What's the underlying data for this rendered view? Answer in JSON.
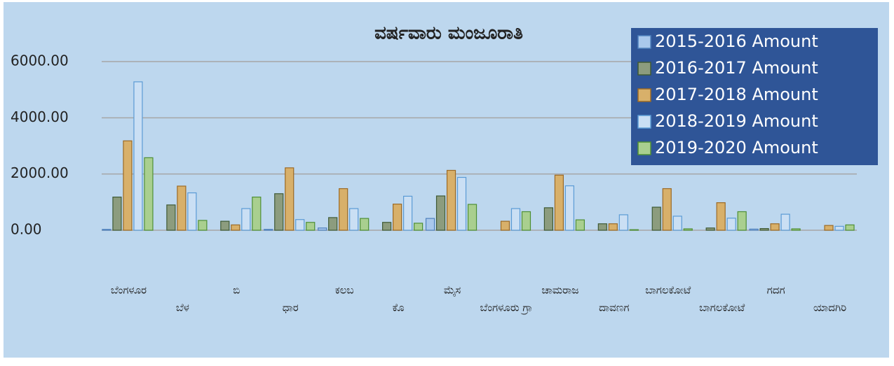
{
  "chart_data": {
    "type": "bar",
    "title": "ವರ್ಷವಾರು ಮಂಜೂರಾತಿ",
    "categories": [
      "ಬೆಂಗಳೂರ",
      "ಬೆಳ",
      "ಬಿ",
      "ಧಾರ",
      "ಕಲಬ",
      "ಕೊ",
      "ಮೈಸ",
      "ಬೆಂಗಳೂರು ಗ್ರಾ",
      "ಚಾಮರಾಜ",
      "ದಾವಣಗ",
      "ಬಾಗಲಕೋಟೆ",
      "ಬಾಗಲಕೋಟೆ",
      "ಗದಗ",
      "ಯಾದಗಿರಿ"
    ],
    "series": [
      {
        "name": "2015-2016 Amount",
        "color": "#a9c8ec",
        "edge": "#4f81bd",
        "values": [
          30,
          0,
          0,
          30,
          80,
          0,
          420,
          0,
          0,
          0,
          0,
          0,
          40,
          0
        ]
      },
      {
        "name": "2016-2017 Amount",
        "color": "#8c9c7e",
        "edge": "#3f5a35",
        "values": [
          1180,
          900,
          320,
          1300,
          450,
          280,
          1220,
          0,
          800,
          230,
          820,
          80,
          60,
          0
        ]
      },
      {
        "name": "2017-2018 Amount",
        "color": "#d8b06a",
        "edge": "#9c6a25",
        "values": [
          3180,
          1570,
          190,
          2220,
          1480,
          930,
          2130,
          320,
          1960,
          230,
          1480,
          980,
          230,
          170
        ]
      },
      {
        "name": "2018-2019 Amount",
        "color": "#cadff4",
        "edge": "#5b9bd5",
        "values": [
          5280,
          1330,
          770,
          380,
          770,
          1210,
          1880,
          770,
          1580,
          550,
          500,
          430,
          570,
          140
        ]
      },
      {
        "name": "2019-2020 Amount",
        "color": "#a9cf8f",
        "edge": "#4e8f35",
        "values": [
          2580,
          350,
          1180,
          280,
          420,
          250,
          920,
          660,
          370,
          20,
          50,
          660,
          50,
          190
        ]
      }
    ],
    "ylim": [
      0,
      6000
    ],
    "yticks": [
      {
        "value": 0,
        "label": "0.00"
      },
      {
        "value": 2000,
        "label": "2000.00"
      },
      {
        "value": 4000,
        "label": "4000.00"
      },
      {
        "value": 6000,
        "label": "6000.00"
      }
    ],
    "grid": true,
    "legend": "top-right"
  }
}
